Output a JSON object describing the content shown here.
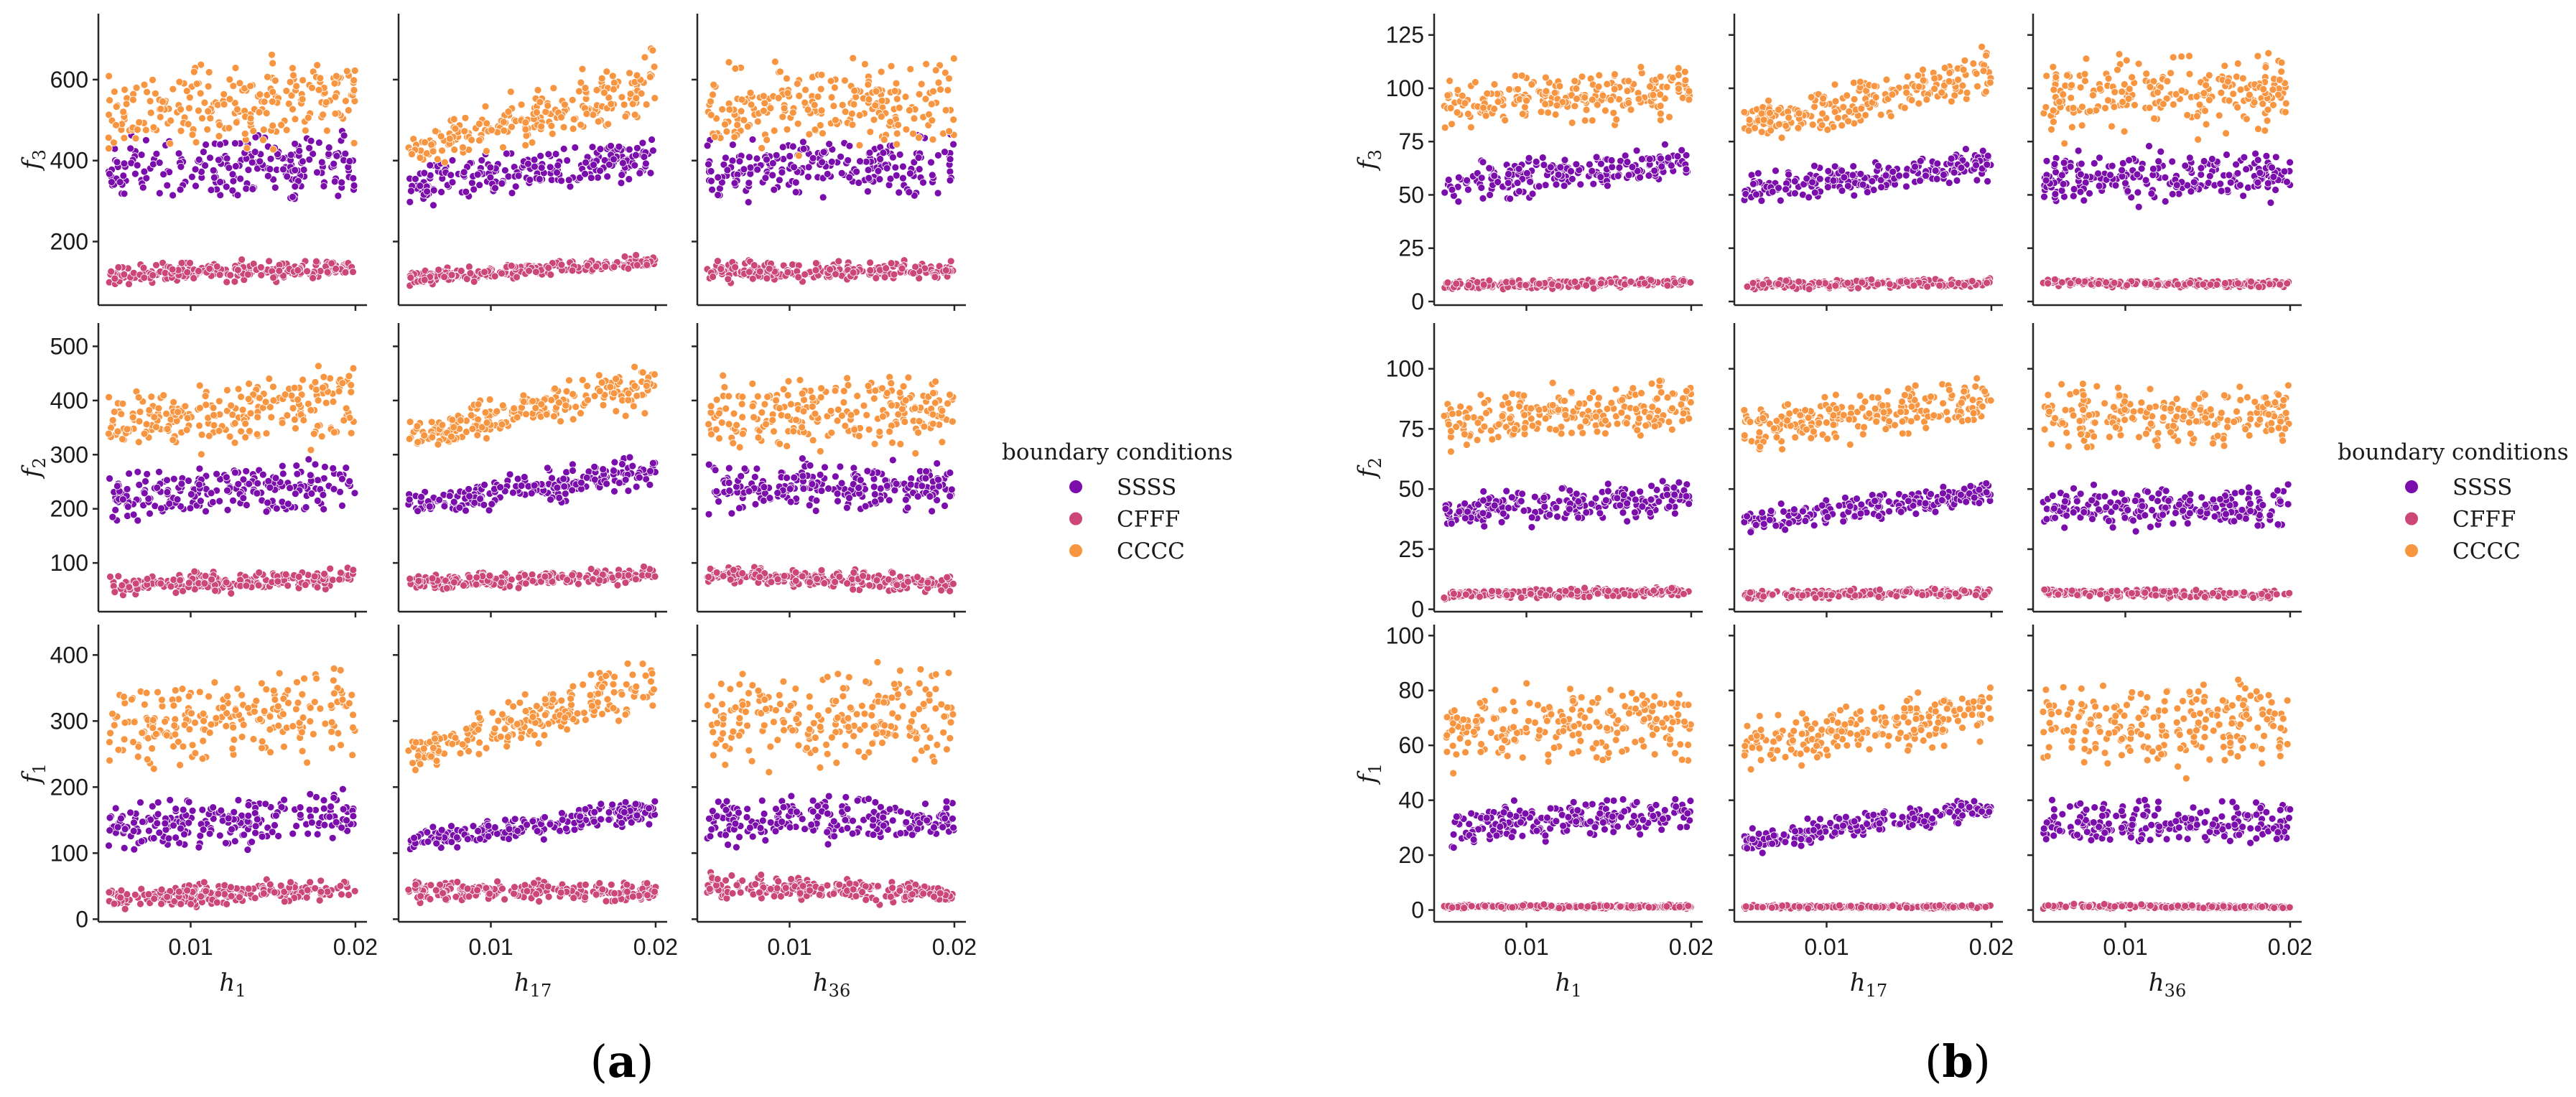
{
  "series_colors": {
    "SSSS": "#7a0dab",
    "CFFF": "#cc4778",
    "CCCC": "#f89540"
  },
  "chart_data": [
    {
      "type": "scatter",
      "panel_label": {
        "open": "(",
        "letter": "a",
        "close": ")"
      },
      "legend": {
        "title": "boundary conditions",
        "entries": [
          "SSSS",
          "CFFF",
          "CCCC"
        ],
        "placement": "right"
      },
      "grid": false,
      "xlim": [
        0.0044,
        0.0207
      ],
      "xticks": [
        0.01,
        0.02
      ],
      "xlabels": [
        {
          "var": "h",
          "sub": "1"
        },
        {
          "var": "h",
          "sub": "17"
        },
        {
          "var": "h",
          "sub": "36"
        }
      ],
      "rows": [
        {
          "ylabel": {
            "var": "f",
            "sub": "3"
          },
          "ylim": [
            43,
            763
          ],
          "yticks": [
            200,
            400,
            600
          ],
          "panels": [
            {
              "SSSS": {
                "y_at_x_min": [
                  280,
                  460
                ],
                "y_at_x_max": [
                  300,
                  480
                ]
              },
              "CFFF": {
                "y_at_x_min": [
                  90,
                  150
                ],
                "y_at_x_max": [
                  110,
                  160
                ]
              },
              "CCCC": {
                "y_at_x_min": [
                  400,
                  620
                ],
                "y_at_x_max": [
                  440,
                  680
                ]
              }
            },
            {
              "SSSS": {
                "y_at_x_min": [
                  270,
                  400
                ],
                "y_at_x_max": [
                  340,
                  480
                ]
              },
              "CFFF": {
                "y_at_x_min": [
                  90,
                  130
                ],
                "y_at_x_max": [
                  130,
                  170
                ]
              },
              "CCCC": {
                "y_at_x_min": [
                  380,
                  460
                ],
                "y_at_x_max": [
                  480,
                  700
                ]
              }
            },
            {
              "SSSS": {
                "y_at_x_min": [
                  290,
                  460
                ],
                "y_at_x_max": [
                  300,
                  470
                ]
              },
              "CFFF": {
                "y_at_x_min": [
                  100,
                  160
                ],
                "y_at_x_max": [
                  100,
                  150
                ]
              },
              "CCCC": {
                "y_at_x_min": [
                  410,
                  640
                ],
                "y_at_x_max": [
                  420,
                  670
                ]
              }
            }
          ]
        },
        {
          "ylabel": {
            "var": "f",
            "sub": "2"
          },
          "ylim": [
            10,
            543
          ],
          "yticks": [
            100,
            200,
            300,
            400,
            500
          ],
          "panels": [
            {
              "SSSS": {
                "y_at_x_min": [
                  170,
                  270
                ],
                "y_at_x_max": [
                  190,
                  300
                ]
              },
              "CFFF": {
                "y_at_x_min": [
                  40,
                  80
                ],
                "y_at_x_max": [
                  50,
                  95
                ]
              },
              "CCCC": {
                "y_at_x_min": [
                  300,
                  420
                ],
                "y_at_x_max": [
                  320,
                  480
                ]
              }
            },
            {
              "SSSS": {
                "y_at_x_min": [
                  180,
                  240
                ],
                "y_at_x_max": [
                  230,
                  310
                ]
              },
              "CFFF": {
                "y_at_x_min": [
                  45,
                  80
                ],
                "y_at_x_max": [
                  60,
                  95
                ]
              },
              "CCCC": {
                "y_at_x_min": [
                  300,
                  360
                ],
                "y_at_x_max": [
                  380,
                  500
                ]
              }
            },
            {
              "SSSS": {
                "y_at_x_min": [
                  190,
                  290
                ],
                "y_at_x_max": [
                  190,
                  290
                ]
              },
              "CFFF": {
                "y_at_x_min": [
                  60,
                  100
                ],
                "y_at_x_max": [
                  40,
                  80
                ]
              },
              "CCCC": {
                "y_at_x_min": [
                  300,
                  440
                ],
                "y_at_x_max": [
                  300,
                  460
                ]
              }
            }
          ]
        },
        {
          "ylabel": {
            "var": "f",
            "sub": "1"
          },
          "ylim": [
            -4,
            446
          ],
          "yticks": [
            0,
            100,
            200,
            300,
            400
          ],
          "panels": [
            {
              "SSSS": {
                "y_at_x_min": [
                  100,
                  180
                ],
                "y_at_x_max": [
                  110,
                  200
                ]
              },
              "CFFF": {
                "y_at_x_min": [
                  15,
                  50
                ],
                "y_at_x_max": [
                  25,
                  65
                ]
              },
              "CCCC": {
                "y_at_x_min": [
                  220,
                  360
                ],
                "y_at_x_max": [
                  240,
                  400
                ]
              }
            },
            {
              "SSSS": {
                "y_at_x_min": [
                  100,
                  140
                ],
                "y_at_x_max": [
                  140,
                  190
                ]
              },
              "CFFF": {
                "y_at_x_min": [
                  25,
                  60
                ],
                "y_at_x_max": [
                  25,
                  60
                ]
              },
              "CCCC": {
                "y_at_x_min": [
                  220,
                  280
                ],
                "y_at_x_max": [
                  300,
                  410
                ]
              }
            },
            {
              "SSSS": {
                "y_at_x_min": [
                  110,
                  190
                ],
                "y_at_x_max": [
                  110,
                  190
                ]
              },
              "CFFF": {
                "y_at_x_min": [
                  30,
                  70
                ],
                "y_at_x_max": [
                  20,
                  55
                ]
              },
              "CCCC": {
                "y_at_x_min": [
                  220,
                  380
                ],
                "y_at_x_max": [
                  220,
                  390
                ]
              }
            }
          ]
        }
      ]
    },
    {
      "type": "scatter",
      "panel_label": {
        "open": "(",
        "letter": "b",
        "close": ")"
      },
      "legend": {
        "title": "boundary conditions",
        "entries": [
          "SSSS",
          "CFFF",
          "CCCC"
        ],
        "placement": "right"
      },
      "grid": false,
      "xlim": [
        0.0044,
        0.0207
      ],
      "xticks": [
        0.01,
        0.02
      ],
      "xlabels": [
        {
          "var": "h",
          "sub": "1"
        },
        {
          "var": "h",
          "sub": "17"
        },
        {
          "var": "h",
          "sub": "36"
        }
      ],
      "rows": [
        {
          "ylabel": {
            "var": "f",
            "sub": "3"
          },
          "ylim": [
            -1.7,
            135
          ],
          "yticks": [
            0,
            25,
            50,
            75,
            100,
            125
          ],
          "panels": [
            {
              "SSSS": {
                "y_at_x_min": [
                  45,
                  65
                ],
                "y_at_x_max": [
                  55,
                  75
                ]
              },
              "CFFF": {
                "y_at_x_min": [
                  5,
                  10
                ],
                "y_at_x_max": [
                  7,
                  11
                ]
              },
              "CCCC": {
                "y_at_x_min": [
                  80,
                  105
                ],
                "y_at_x_max": [
                  85,
                  115
                ]
              }
            },
            {
              "SSSS": {
                "y_at_x_min": [
                  45,
                  60
                ],
                "y_at_x_max": [
                  55,
                  75
                ]
              },
              "CFFF": {
                "y_at_x_min": [
                  5,
                  10
                ],
                "y_at_x_max": [
                  7,
                  11
                ]
              },
              "CCCC": {
                "y_at_x_min": [
                  70,
                  95
                ],
                "y_at_x_max": [
                  90,
                  120
                ]
              }
            },
            {
              "SSSS": {
                "y_at_x_min": [
                  45,
                  72
                ],
                "y_at_x_max": [
                  45,
                  72
                ]
              },
              "CFFF": {
                "y_at_x_min": [
                  7,
                  11
                ],
                "y_at_x_max": [
                  6,
                  10
                ]
              },
              "CCCC": {
                "y_at_x_min": [
                  75,
                  115
                ],
                "y_at_x_max": [
                  78,
                  120
                ]
              }
            }
          ]
        },
        {
          "ylabel": {
            "var": "f",
            "sub": "2"
          },
          "ylim": [
            -1,
            119
          ],
          "yticks": [
            0,
            25,
            50,
            75,
            100
          ],
          "panels": [
            {
              "SSSS": {
                "y_at_x_min": [
                  32,
                  48
                ],
                "y_at_x_max": [
                  38,
                  55
                ]
              },
              "CFFF": {
                "y_at_x_min": [
                  4,
                  8
                ],
                "y_at_x_max": [
                  5,
                  10
                ]
              },
              "CCCC": {
                "y_at_x_min": [
                  65,
                  90
                ],
                "y_at_x_max": [
                  70,
                  100
                ]
              }
            },
            {
              "SSSS": {
                "y_at_x_min": [
                  30,
                  42
                ],
                "y_at_x_max": [
                  42,
                  55
                ]
              },
              "CFFF": {
                "y_at_x_min": [
                  4,
                  8
                ],
                "y_at_x_max": [
                  5,
                  9
                ]
              },
              "CCCC": {
                "y_at_x_min": [
                  65,
                  85
                ],
                "y_at_x_max": [
                  75,
                  100
                ]
              }
            },
            {
              "SSSS": {
                "y_at_x_min": [
                  32,
                  52
                ],
                "y_at_x_max": [
                  32,
                  52
                ]
              },
              "CFFF": {
                "y_at_x_min": [
                  5,
                  9
                ],
                "y_at_x_max": [
                  4,
                  8
                ]
              },
              "CCCC": {
                "y_at_x_min": [
                  65,
                  95
                ],
                "y_at_x_max": [
                  65,
                  95
                ]
              }
            }
          ]
        },
        {
          "ylabel": {
            "var": "f",
            "sub": "1"
          },
          "ylim": [
            -4.3,
            104
          ],
          "yticks": [
            0,
            20,
            40,
            60,
            80,
            100
          ],
          "panels": [
            {
              "SSSS": {
                "y_at_x_min": [
                  22,
                  38
                ],
                "y_at_x_max": [
                  28,
                  42
                ]
              },
              "CFFF": {
                "y_at_x_min": [
                  0.5,
                  2
                ],
                "y_at_x_max": [
                  0.5,
                  2
                ]
              },
              "CCCC": {
                "y_at_x_min": [
                  50,
                  80
                ],
                "y_at_x_max": [
                  55,
                  85
                ]
              }
            },
            {
              "SSSS": {
                "y_at_x_min": [
                  20,
                  30
                ],
                "y_at_x_max": [
                  32,
                  42
                ]
              },
              "CFFF": {
                "y_at_x_min": [
                  0.5,
                  2
                ],
                "y_at_x_max": [
                  0.5,
                  2
                ]
              },
              "CCCC": {
                "y_at_x_min": [
                  50,
                  70
                ],
                "y_at_x_max": [
                  60,
                  85
                ]
              }
            },
            {
              "SSSS": {
                "y_at_x_min": [
                  22,
                  40
                ],
                "y_at_x_max": [
                  22,
                  40
                ]
              },
              "CFFF": {
                "y_at_x_min": [
                  0.5,
                  2.5
                ],
                "y_at_x_max": [
                  0.5,
                  1.5
                ]
              },
              "CCCC": {
                "y_at_x_min": [
                  50,
                  85
                ],
                "y_at_x_max": [
                  50,
                  85
                ]
              }
            }
          ]
        }
      ]
    }
  ]
}
